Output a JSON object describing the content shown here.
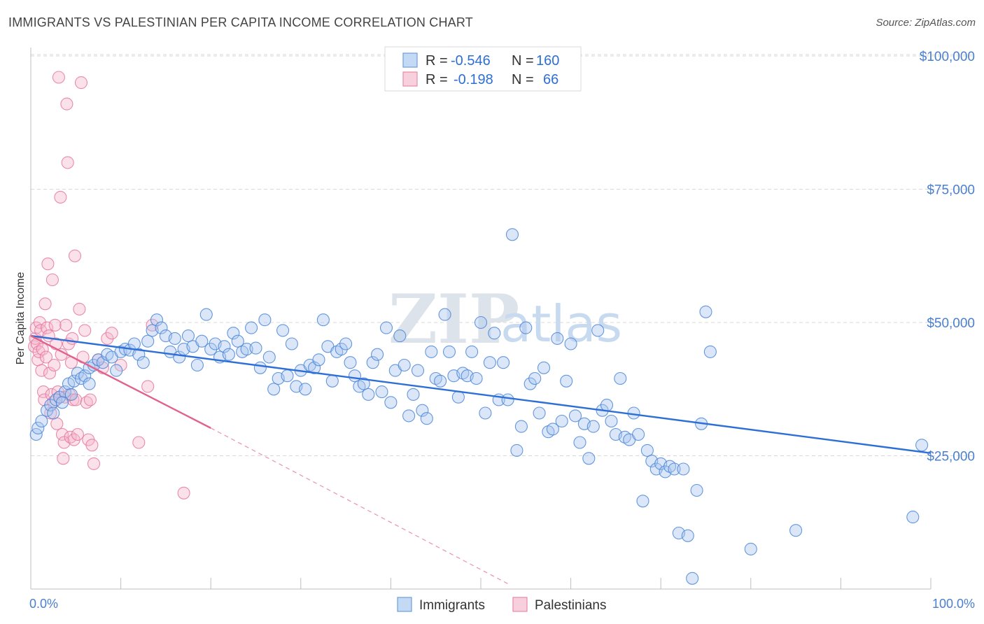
{
  "title": "IMMIGRANTS VS PALESTINIAN PER CAPITA INCOME CORRELATION CHART",
  "source": "Source: ZipAtlas.com",
  "watermark": {
    "zip": "ZIP",
    "atlas": "atlas"
  },
  "legend_top": [
    {
      "r_label": "R =",
      "r_value": "-0.546",
      "n_label": "N =",
      "n_value": "160",
      "color": "#a9c6ee"
    },
    {
      "r_label": "R =",
      "r_value": "-0.198",
      "n_label": "N =",
      "n_value": "66",
      "color": "#f5b8cc"
    }
  ],
  "legend_bottom": [
    {
      "label": "Immigrants",
      "color": "#a9c6ee"
    },
    {
      "label": "Palestinians",
      "color": "#f5b8cc"
    }
  ],
  "chart_data": {
    "type": "scatter",
    "title": "IMMIGRANTS VS PALESTINIAN PER CAPITA INCOME CORRELATION CHART",
    "ylabel": "Per Capita Income",
    "xlabel": "",
    "x_tick_labels": [
      "0.0%",
      "100.0%"
    ],
    "y_tick_labels": [
      "$25,000",
      "$50,000",
      "$75,000",
      "$100,000"
    ],
    "y_ticks": [
      25000,
      50000,
      75000,
      100000
    ],
    "xlim": [
      0,
      100
    ],
    "ylim": [
      0,
      100000
    ],
    "grid": true,
    "legend_position": "top-center",
    "series": [
      {
        "name": "Immigrants",
        "color": "#4a86d8",
        "fill": "#a9c6ee",
        "trend": {
          "x": [
            0,
            100
          ],
          "y": [
            47500,
            25500
          ],
          "color": "#2d6fd6"
        },
        "points": [
          [
            0.6,
            29000
          ],
          [
            0.8,
            30200
          ],
          [
            1.2,
            31500
          ],
          [
            1.8,
            33500
          ],
          [
            2.2,
            34500
          ],
          [
            2.8,
            35500
          ],
          [
            3.2,
            36000
          ],
          [
            3.8,
            37000
          ],
          [
            4.2,
            38500
          ],
          [
            4.8,
            39000
          ],
          [
            5.2,
            40500
          ],
          [
            5.6,
            39500
          ],
          [
            6.0,
            40000
          ],
          [
            6.5,
            41500
          ],
          [
            7.0,
            42000
          ],
          [
            7.5,
            43000
          ],
          [
            8.0,
            42500
          ],
          [
            8.5,
            44000
          ],
          [
            9.0,
            43500
          ],
          [
            9.5,
            41000
          ],
          [
            10.0,
            44500
          ],
          [
            10.5,
            45000
          ],
          [
            11.0,
            44800
          ],
          [
            11.5,
            46000
          ],
          [
            12.0,
            44000
          ],
          [
            12.5,
            42500
          ],
          [
            13.0,
            46500
          ],
          [
            13.5,
            48500
          ],
          [
            14.0,
            50500
          ],
          [
            14.5,
            49000
          ],
          [
            15.0,
            47500
          ],
          [
            15.5,
            44500
          ],
          [
            16.0,
            47000
          ],
          [
            16.5,
            43500
          ],
          [
            17.0,
            45000
          ],
          [
            17.5,
            47500
          ],
          [
            18.0,
            45500
          ],
          [
            18.5,
            42000
          ],
          [
            19.0,
            46500
          ],
          [
            19.5,
            51500
          ],
          [
            20.0,
            45000
          ],
          [
            20.5,
            46000
          ],
          [
            21.0,
            43500
          ],
          [
            21.5,
            45500
          ],
          [
            22.0,
            44000
          ],
          [
            22.5,
            48000
          ],
          [
            23.0,
            46500
          ],
          [
            23.5,
            44500
          ],
          [
            24.0,
            45000
          ],
          [
            24.5,
            49000
          ],
          [
            25.0,
            45200
          ],
          [
            25.5,
            41500
          ],
          [
            26.0,
            50500
          ],
          [
            26.5,
            43500
          ],
          [
            27.0,
            37500
          ],
          [
            27.5,
            39500
          ],
          [
            28.0,
            48500
          ],
          [
            28.5,
            40000
          ],
          [
            29.0,
            46000
          ],
          [
            29.5,
            38000
          ],
          [
            30.0,
            41000
          ],
          [
            30.5,
            37500
          ],
          [
            31.0,
            42000
          ],
          [
            31.5,
            41500
          ],
          [
            32.0,
            43000
          ],
          [
            32.5,
            50500
          ],
          [
            33.0,
            45500
          ],
          [
            33.5,
            39000
          ],
          [
            34.0,
            44500
          ],
          [
            34.5,
            45000
          ],
          [
            35.0,
            46000
          ],
          [
            35.5,
            42500
          ],
          [
            36.0,
            40000
          ],
          [
            36.5,
            38000
          ],
          [
            37.0,
            38500
          ],
          [
            37.5,
            36500
          ],
          [
            38.0,
            42500
          ],
          [
            38.5,
            44000
          ],
          [
            39.0,
            37000
          ],
          [
            39.5,
            49000
          ],
          [
            40.0,
            35000
          ],
          [
            40.5,
            41000
          ],
          [
            41.0,
            47500
          ],
          [
            41.5,
            42000
          ],
          [
            42.0,
            32500
          ],
          [
            42.5,
            36500
          ],
          [
            43.0,
            41000
          ],
          [
            43.5,
            33500
          ],
          [
            44.0,
            32000
          ],
          [
            44.5,
            44500
          ],
          [
            45.0,
            39500
          ],
          [
            45.5,
            39000
          ],
          [
            46.0,
            51500
          ],
          [
            46.5,
            44500
          ],
          [
            47.0,
            40000
          ],
          [
            47.5,
            36000
          ],
          [
            48.0,
            40500
          ],
          [
            48.5,
            40000
          ],
          [
            49.0,
            44500
          ],
          [
            49.5,
            39500
          ],
          [
            50.0,
            50000
          ],
          [
            50.5,
            33000
          ],
          [
            51.0,
            42500
          ],
          [
            51.5,
            48000
          ],
          [
            52.0,
            35500
          ],
          [
            52.5,
            42500
          ],
          [
            53.0,
            35500
          ],
          [
            53.5,
            66500
          ],
          [
            54.0,
            26000
          ],
          [
            54.5,
            30500
          ],
          [
            55.0,
            49000
          ],
          [
            55.5,
            38500
          ],
          [
            56.0,
            39500
          ],
          [
            56.5,
            33000
          ],
          [
            57.0,
            41500
          ],
          [
            57.5,
            29500
          ],
          [
            58.0,
            30000
          ],
          [
            58.5,
            47000
          ],
          [
            59.0,
            31500
          ],
          [
            59.5,
            39000
          ],
          [
            60.0,
            46000
          ],
          [
            60.5,
            32500
          ],
          [
            61.0,
            27500
          ],
          [
            61.5,
            31000
          ],
          [
            62.0,
            24500
          ],
          [
            62.5,
            30500
          ],
          [
            63.0,
            48500
          ],
          [
            63.5,
            33500
          ],
          [
            64.0,
            34500
          ],
          [
            64.5,
            31500
          ],
          [
            65.0,
            29000
          ],
          [
            65.5,
            39500
          ],
          [
            66.0,
            28500
          ],
          [
            66.5,
            28000
          ],
          [
            67.0,
            33000
          ],
          [
            67.5,
            29000
          ],
          [
            68.0,
            16500
          ],
          [
            68.5,
            26000
          ],
          [
            69.0,
            24000
          ],
          [
            69.5,
            22500
          ],
          [
            70.0,
            23500
          ],
          [
            70.5,
            22000
          ],
          [
            71.0,
            23000
          ],
          [
            71.5,
            22500
          ],
          [
            72.0,
            10500
          ],
          [
            72.5,
            22500
          ],
          [
            73.0,
            10000
          ],
          [
            73.5,
            2000
          ],
          [
            74.0,
            18500
          ],
          [
            74.5,
            31000
          ],
          [
            75.0,
            52000
          ],
          [
            75.5,
            44500
          ],
          [
            80.0,
            7500
          ],
          [
            85.0,
            11000
          ],
          [
            98.0,
            13500
          ],
          [
            99.0,
            27000
          ],
          [
            2.5,
            33000
          ],
          [
            3.5,
            35000
          ],
          [
            4.5,
            36500
          ],
          [
            6.5,
            38500
          ]
        ]
      },
      {
        "name": "Palestinians",
        "color": "#e6789c",
        "fill": "#f5b8cc",
        "trend": {
          "x": [
            0,
            20
          ],
          "y": [
            47500,
            30200
          ],
          "color": "#e0628e",
          "dashed_to": [
            53,
            1000
          ]
        },
        "points": [
          [
            0.4,
            45500
          ],
          [
            0.5,
            47000
          ],
          [
            0.6,
            49000
          ],
          [
            0.7,
            46000
          ],
          [
            0.8,
            43000
          ],
          [
            0.9,
            44500
          ],
          [
            1.0,
            50000
          ],
          [
            1.1,
            48500
          ],
          [
            1.2,
            41000
          ],
          [
            1.3,
            45000
          ],
          [
            1.4,
            37000
          ],
          [
            1.5,
            35500
          ],
          [
            1.6,
            53500
          ],
          [
            1.7,
            43500
          ],
          [
            1.8,
            49000
          ],
          [
            1.9,
            61000
          ],
          [
            2.0,
            47500
          ],
          [
            2.1,
            40500
          ],
          [
            2.2,
            33000
          ],
          [
            2.3,
            36500
          ],
          [
            2.4,
            58000
          ],
          [
            2.5,
            35000
          ],
          [
            2.6,
            42000
          ],
          [
            2.7,
            49500
          ],
          [
            2.8,
            46000
          ],
          [
            2.9,
            31000
          ],
          [
            3.0,
            37000
          ],
          [
            3.1,
            96000
          ],
          [
            3.2,
            36000
          ],
          [
            3.3,
            73500
          ],
          [
            3.4,
            44000
          ],
          [
            3.5,
            29000
          ],
          [
            3.6,
            24500
          ],
          [
            3.7,
            27500
          ],
          [
            3.8,
            36000
          ],
          [
            3.9,
            49500
          ],
          [
            4.0,
            91000
          ],
          [
            4.1,
            80000
          ],
          [
            4.2,
            46000
          ],
          [
            4.3,
            36500
          ],
          [
            4.4,
            28500
          ],
          [
            4.5,
            42500
          ],
          [
            4.6,
            47000
          ],
          [
            4.7,
            35500
          ],
          [
            4.8,
            28000
          ],
          [
            4.9,
            62500
          ],
          [
            5.0,
            35500
          ],
          [
            5.2,
            29000
          ],
          [
            5.4,
            52500
          ],
          [
            5.6,
            95000
          ],
          [
            5.8,
            43500
          ],
          [
            6.0,
            48500
          ],
          [
            6.2,
            35000
          ],
          [
            6.4,
            28000
          ],
          [
            6.6,
            35500
          ],
          [
            6.8,
            27000
          ],
          [
            7.0,
            23500
          ],
          [
            7.5,
            43000
          ],
          [
            8.0,
            41500
          ],
          [
            8.5,
            47000
          ],
          [
            9.0,
            48000
          ],
          [
            10.0,
            42000
          ],
          [
            12.0,
            27500
          ],
          [
            13.0,
            38000
          ],
          [
            13.5,
            49500
          ],
          [
            17.0,
            18000
          ]
        ]
      }
    ]
  }
}
